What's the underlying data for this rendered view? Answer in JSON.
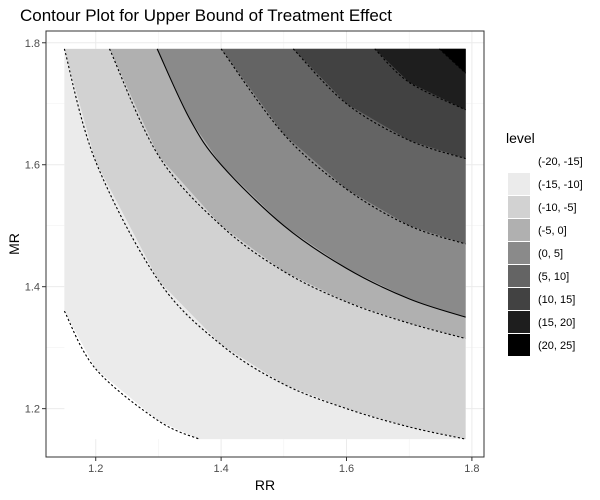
{
  "chart_data": {
    "type": "contour",
    "title": "Contour Plot for Upper Bound of Treatment Effect",
    "xlabel": "RR",
    "ylabel": "MR",
    "xlim": [
      1.15,
      1.79
    ],
    "ylim": [
      1.15,
      1.79
    ],
    "x_ticks": [
      "1.2",
      "1.4",
      "1.6",
      "1.8"
    ],
    "y_ticks": [
      "1.2",
      "1.4",
      "1.6",
      "1.8"
    ],
    "grid": true,
    "legend": {
      "title": "level",
      "position": "right",
      "entries": [
        {
          "label": "(-20, -15]",
          "color": "#ffffff"
        },
        {
          "label": "(-15, -10]",
          "color": "#ebebeb"
        },
        {
          "label": "(-10, -5]",
          "color": "#d2d2d2"
        },
        {
          "label": "(-5, 0]",
          "color": "#b0b0b0"
        },
        {
          "label": "(0, 5]",
          "color": "#8a8a8a"
        },
        {
          "label": "(5, 10]",
          "color": "#646464"
        },
        {
          "label": "(10, 15]",
          "color": "#424242"
        },
        {
          "label": "(15, 20]",
          "color": "#1e1e1e"
        },
        {
          "label": "(20, 25]",
          "color": "#000000"
        }
      ]
    },
    "contours": [
      {
        "level": -15,
        "linetype": "dashed",
        "points": [
          [
            1.15,
            1.36
          ],
          [
            1.2,
            1.265
          ],
          [
            1.3,
            1.18
          ],
          [
            1.365,
            1.15
          ]
        ]
      },
      {
        "level": -10,
        "linetype": "dashed",
        "points": [
          [
            1.15,
            1.79
          ],
          [
            1.2,
            1.605
          ],
          [
            1.3,
            1.41
          ],
          [
            1.4,
            1.305
          ],
          [
            1.5,
            1.24
          ],
          [
            1.6,
            1.2
          ],
          [
            1.7,
            1.17
          ],
          [
            1.79,
            1.15
          ]
        ]
      },
      {
        "level": -5,
        "linetype": "dashed",
        "points": [
          [
            1.222,
            1.79
          ],
          [
            1.3,
            1.615
          ],
          [
            1.4,
            1.5
          ],
          [
            1.5,
            1.425
          ],
          [
            1.6,
            1.375
          ],
          [
            1.7,
            1.34
          ],
          [
            1.79,
            1.315
          ]
        ]
      },
      {
        "level": 0,
        "linetype": "solid",
        "points": [
          [
            1.298,
            1.79
          ],
          [
            1.35,
            1.675
          ],
          [
            1.4,
            1.6
          ],
          [
            1.5,
            1.5
          ],
          [
            1.6,
            1.43
          ],
          [
            1.7,
            1.38
          ],
          [
            1.79,
            1.35
          ]
        ]
      },
      {
        "level": 5,
        "linetype": "dashed",
        "points": [
          [
            1.4,
            1.79
          ],
          [
            1.5,
            1.65
          ],
          [
            1.6,
            1.56
          ],
          [
            1.7,
            1.5
          ],
          [
            1.79,
            1.47
          ]
        ]
      },
      {
        "level": 10,
        "linetype": "dashed",
        "points": [
          [
            1.515,
            1.79
          ],
          [
            1.6,
            1.7
          ],
          [
            1.7,
            1.64
          ],
          [
            1.79,
            1.61
          ]
        ]
      },
      {
        "level": 15,
        "linetype": "dashed",
        "points": [
          [
            1.645,
            1.79
          ],
          [
            1.7,
            1.735
          ],
          [
            1.79,
            1.69
          ]
        ]
      },
      {
        "level": 20,
        "linetype": "dashed",
        "points": [
          [
            1.748,
            1.79
          ],
          [
            1.79,
            1.75
          ]
        ]
      }
    ]
  }
}
